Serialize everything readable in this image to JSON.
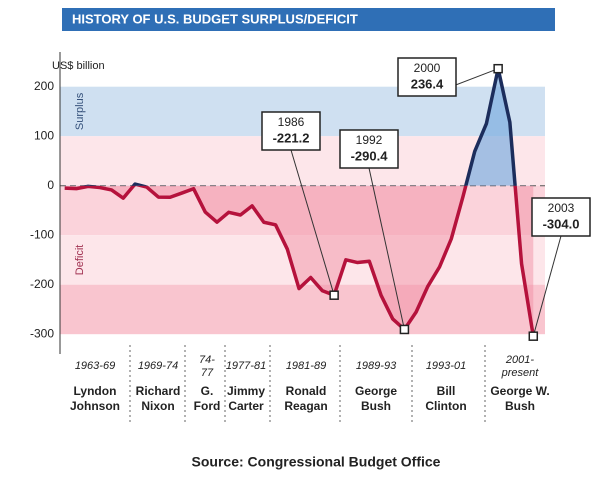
{
  "chart_data": {
    "type": "line",
    "title": "HISTORY OF U.S. BUDGET SURPLUS/DEFICIT",
    "y_label": "US$ billion",
    "band_labels": [
      "Surplus",
      "Deficit"
    ],
    "source": "Source: Congressional Budget Office",
    "x": [
      1963,
      1964,
      1965,
      1966,
      1967,
      1968,
      1969,
      1970,
      1971,
      1972,
      1973,
      1974,
      1975,
      1976,
      1977,
      1978,
      1979,
      1980,
      1981,
      1982,
      1983,
      1984,
      1985,
      1986,
      1987,
      1988,
      1989,
      1990,
      1991,
      1992,
      1993,
      1994,
      1995,
      1996,
      1997,
      1998,
      1999,
      2000,
      2001,
      2002,
      2003
    ],
    "values": [
      -4.8,
      -5.9,
      -1.4,
      -3.7,
      -8.6,
      -25.2,
      3.2,
      -2.8,
      -23,
      -23.4,
      -14.9,
      -6.1,
      -53.2,
      -73.7,
      -53.7,
      -59.2,
      -40.7,
      -73.8,
      -79,
      -128,
      -207.8,
      -185.4,
      -212.3,
      -221.2,
      -149.7,
      -155.2,
      -152.6,
      -221,
      -269.2,
      -290.4,
      -255.1,
      -203.2,
      -164,
      -107.4,
      -21.9,
      69.3,
      125.6,
      236.4,
      128.2,
      -157.8,
      -304
    ],
    "color": "#b5123c",
    "surplus_color": "#1c2d5c",
    "xlim": [
      1962.6,
      2004
    ],
    "ylim": [
      -340,
      260
    ],
    "yticks": [
      200,
      100,
      0,
      -100,
      -200,
      -300
    ],
    "annotations": [
      {
        "year": 1986,
        "value": -221.2,
        "label": "-221.2"
      },
      {
        "year": 1992,
        "value": -290.4,
        "label": "-290.4"
      },
      {
        "year": 2000,
        "value": 236.4,
        "label": "236.4"
      },
      {
        "year": 2003,
        "value": -304,
        "label": "-304.0"
      }
    ],
    "periods": [
      {
        "range": [
          "1963-69"
        ],
        "name": [
          "Lyndon",
          "Johnson"
        ]
      },
      {
        "range": [
          "1969-74"
        ],
        "name": [
          "Richard",
          "Nixon"
        ]
      },
      {
        "range": [
          "74-",
          "77"
        ],
        "name": [
          "G.",
          "Ford"
        ]
      },
      {
        "range": [
          "1977-81"
        ],
        "name": [
          "Jimmy",
          "Carter"
        ]
      },
      {
        "range": [
          "1981-89"
        ],
        "name": [
          "Ronald",
          "Reagan"
        ]
      },
      {
        "range": [
          "1989-93"
        ],
        "name": [
          "George",
          "Bush"
        ]
      },
      {
        "range": [
          "1993-01"
        ],
        "name": [
          "Bill",
          "Clinton"
        ]
      },
      {
        "range": [
          "2001-",
          "present"
        ],
        "name": [
          "George W.",
          "Bush"
        ]
      }
    ]
  }
}
